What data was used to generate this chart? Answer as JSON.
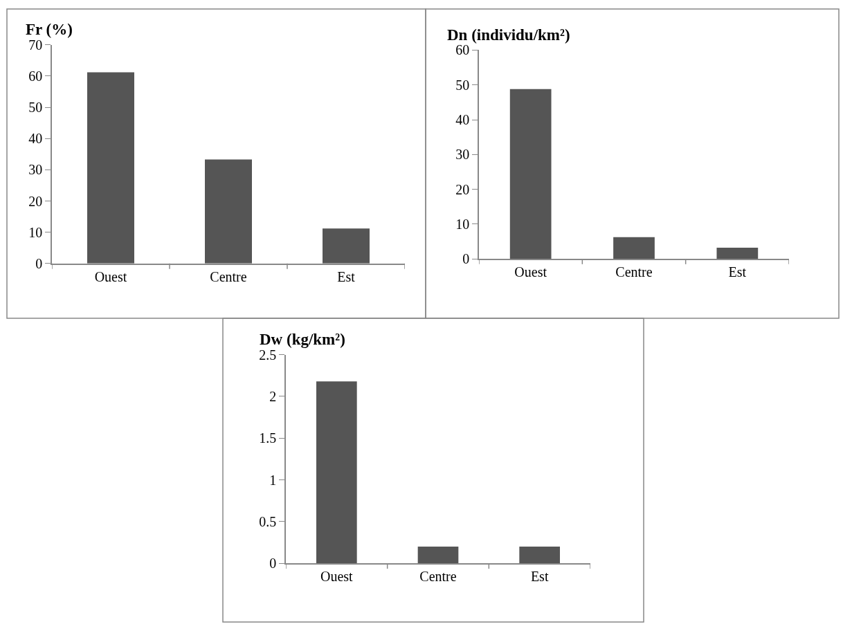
{
  "chart_data": [
    {
      "type": "bar",
      "title": "Fr (%)",
      "categories": [
        "Ouest",
        "Centre",
        "Est"
      ],
      "values": [
        61.2,
        33.3,
        11.2
      ],
      "color": "#555555",
      "ylim": [
        0,
        70
      ],
      "yticks": [
        0,
        10,
        20,
        30,
        40,
        50,
        60,
        70
      ]
    },
    {
      "type": "bar",
      "title": "Dn (individu/km²)",
      "categories": [
        "Ouest",
        "Centre",
        "Est"
      ],
      "values": [
        48.8,
        6.2,
        3.2
      ],
      "color": "#555555",
      "ylim": [
        0,
        60
      ],
      "yticks": [
        0,
        10,
        20,
        30,
        40,
        50,
        60
      ]
    },
    {
      "type": "bar",
      "title": "Dw (kg/km²)",
      "categories": [
        "Ouest",
        "Centre",
        "Est"
      ],
      "values": [
        2.18,
        0.2,
        0.2
      ],
      "color": "#555555",
      "ylim": [
        0,
        2.5
      ],
      "yticks": [
        0,
        0.5,
        1,
        1.5,
        2,
        2.5
      ]
    }
  ]
}
